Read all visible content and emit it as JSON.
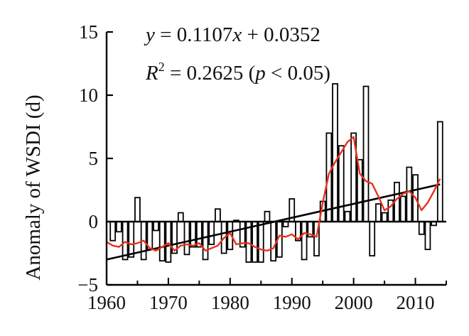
{
  "chart_data": {
    "type": "bar",
    "ylabel": "Anomaly of WSDI (d)",
    "xlabel": "",
    "xlim": [
      1960,
      2015
    ],
    "ylim": [
      -5,
      15
    ],
    "x_ticks": [
      "1960",
      "1970",
      "1980",
      "1990",
      "2000",
      "2010"
    ],
    "y_ticks": [
      "−5",
      "0",
      "5",
      "10",
      "15"
    ],
    "grid": false,
    "legend": "none",
    "annotations": {
      "equation_lhs": "y",
      "equation_rhs": " = 0.1107",
      "equation_var": "x",
      "equation_tail": " + 0.0352",
      "r2_symbol": "R",
      "r2_exp": "2",
      "r2_value": " = 0.2625 (",
      "r2_p": "p",
      "r2_tail": " < 0.05)"
    },
    "series": [
      {
        "type": "bar",
        "color": "#000000",
        "x": [
          1961,
          1962,
          1963,
          1964,
          1965,
          1966,
          1967,
          1968,
          1969,
          1970,
          1971,
          1972,
          1973,
          1974,
          1975,
          1976,
          1977,
          1978,
          1979,
          1980,
          1981,
          1982,
          1983,
          1984,
          1985,
          1986,
          1987,
          1988,
          1989,
          1990,
          1991,
          1992,
          1993,
          1994,
          1995,
          1996,
          1997,
          1998,
          1999,
          2000,
          2001,
          2002,
          2003,
          2004,
          2005,
          2006,
          2007,
          2008,
          2009,
          2010,
          2011,
          2012,
          2013,
          2014
        ],
        "values": [
          -1.5,
          -0.8,
          -3.0,
          -2.8,
          1.9,
          -3.0,
          -2.2,
          -0.7,
          -3.1,
          -3.2,
          -2.5,
          0.7,
          -2.6,
          -2.0,
          -2.0,
          -3.0,
          -1.8,
          1.0,
          -2.5,
          -2.2,
          0.1,
          -2.0,
          -3.2,
          -3.2,
          -3.2,
          0.8,
          -3.1,
          -2.8,
          -0.4,
          1.8,
          -1.5,
          -3.0,
          -1.2,
          -2.7,
          1.6,
          7.0,
          10.9,
          6.0,
          0.8,
          7.0,
          4.9,
          10.7,
          -2.7,
          1.4,
          0.7,
          1.7,
          3.1,
          2.0,
          4.3,
          3.7,
          -1.0,
          -2.2,
          -0.3,
          7.9
        ]
      },
      {
        "type": "line",
        "color": "#e8321e",
        "x": [
          1960,
          1961,
          1962,
          1963,
          1964,
          1965,
          1966,
          1967,
          1968,
          1969,
          1970,
          1971,
          1972,
          1973,
          1974,
          1975,
          1976,
          1977,
          1978,
          1979,
          1980,
          1981,
          1982,
          1983,
          1984,
          1985,
          1986,
          1987,
          1988,
          1989,
          1990,
          1991,
          1992,
          1993,
          1994,
          1995,
          1996,
          1997,
          1998,
          1999,
          2000,
          2001,
          2002,
          2003,
          2004,
          2005,
          2006,
          2007,
          2008,
          2009,
          2010,
          2011,
          2012,
          2013,
          2014
        ],
        "values": [
          -1.6,
          -1.9,
          -2.0,
          -1.6,
          -1.8,
          -1.7,
          -1.5,
          -2.1,
          -2.3,
          -2.0,
          -1.7,
          -2.3,
          -1.9,
          -1.8,
          -1.9,
          -1.7,
          -2.3,
          -2.1,
          -1.9,
          -1.3,
          -0.9,
          -1.8,
          -1.7,
          -1.7,
          -2.0,
          -2.2,
          -2.3,
          -2.1,
          -1.1,
          -1.2,
          -1.0,
          -1.4,
          -0.9,
          -1.0,
          -1.2,
          1.5,
          3.8,
          4.7,
          5.5,
          6.3,
          6.7,
          3.8,
          3.2,
          3.0,
          2.0,
          0.9,
          1.2,
          1.8,
          2.2,
          2.4,
          1.9,
          0.9,
          1.5,
          2.4,
          3.4
        ]
      },
      {
        "type": "trend",
        "color": "#000000",
        "x": [
          1960,
          2014
        ],
        "values": [
          -3.0,
          2.95
        ]
      }
    ]
  }
}
